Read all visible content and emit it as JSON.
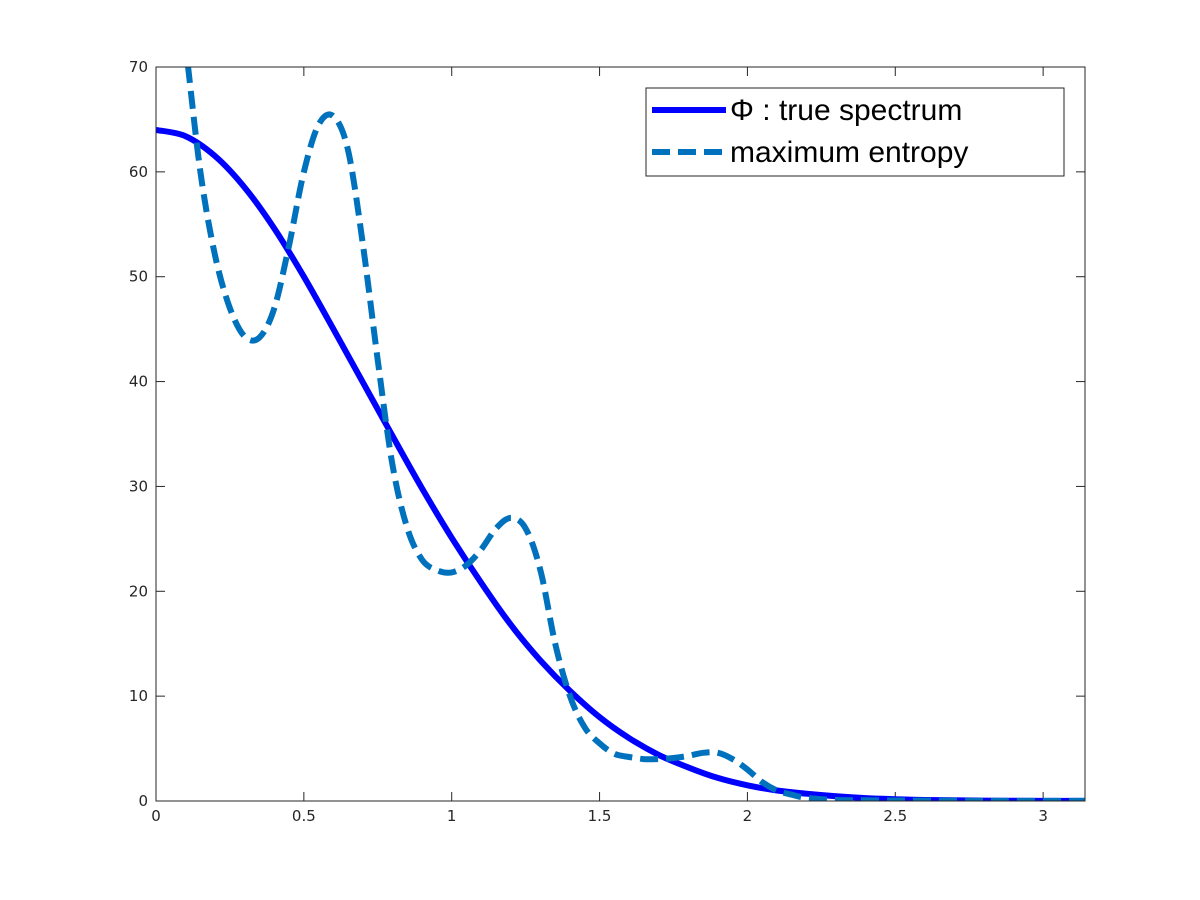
{
  "chart_data": {
    "type": "line",
    "xlim": [
      0,
      3.14159
    ],
    "ylim": [
      0,
      70
    ],
    "x_ticks": [
      0,
      0.5,
      1,
      1.5,
      2,
      2.5,
      3
    ],
    "x_tick_labels": [
      "0",
      "0.5",
      "1",
      "1.5",
      "2",
      "2.5",
      "3"
    ],
    "y_ticks": [
      0,
      10,
      20,
      30,
      40,
      50,
      60,
      70
    ],
    "y_tick_labels": [
      "0",
      "10",
      "20",
      "30",
      "40",
      "50",
      "60",
      "70"
    ],
    "grid": false,
    "legend_position": "top-right",
    "series": [
      {
        "name": "Φ : true spectrum",
        "color": "#0000ff",
        "style": "solid",
        "x": [
          0,
          0.1,
          0.2,
          0.3,
          0.4,
          0.5,
          0.6,
          0.7,
          0.8,
          0.9,
          1.0,
          1.1,
          1.2,
          1.3,
          1.4,
          1.5,
          1.6,
          1.7,
          1.8,
          1.9,
          2.0,
          2.1,
          2.2,
          2.3,
          2.4,
          2.5,
          2.6,
          2.8,
          3.0,
          3.14
        ],
        "y": [
          64,
          63.4,
          61.5,
          58.5,
          54.6,
          50.0,
          45.0,
          39.9,
          34.8,
          29.8,
          25.1,
          20.8,
          16.8,
          13.4,
          10.5,
          8.0,
          6.0,
          4.4,
          3.2,
          2.2,
          1.5,
          1.0,
          0.7,
          0.45,
          0.28,
          0.17,
          0.1,
          0.04,
          0.01,
          0.005
        ]
      },
      {
        "name": "maximum entropy",
        "color": "#0072bd",
        "style": "dashed",
        "x": [
          0.06,
          0.1,
          0.15,
          0.2,
          0.25,
          0.3,
          0.35,
          0.4,
          0.45,
          0.5,
          0.55,
          0.6,
          0.65,
          0.7,
          0.75,
          0.8,
          0.85,
          0.9,
          0.95,
          1.0,
          1.05,
          1.1,
          1.15,
          1.2,
          1.25,
          1.3,
          1.35,
          1.4,
          1.45,
          1.5,
          1.55,
          1.6,
          1.65,
          1.7,
          1.75,
          1.8,
          1.85,
          1.9,
          1.95,
          2.0,
          2.05,
          2.1,
          2.15,
          2.2,
          2.3,
          2.5,
          2.7,
          2.9,
          3.14
        ],
        "y": [
          80,
          72,
          60,
          52,
          47,
          44.3,
          44.2,
          47,
          53,
          60,
          64.5,
          65.3,
          62,
          53,
          42,
          32,
          26,
          23,
          22,
          21.8,
          22.5,
          24,
          26,
          27,
          26,
          22,
          15,
          10,
          7,
          5.5,
          4.5,
          4.2,
          4.0,
          4.0,
          4.1,
          4.3,
          4.6,
          4.6,
          4.0,
          3.0,
          1.8,
          1.0,
          0.6,
          0.3,
          0.1,
          0.05,
          0.02,
          0.01,
          0.01
        ]
      }
    ]
  }
}
